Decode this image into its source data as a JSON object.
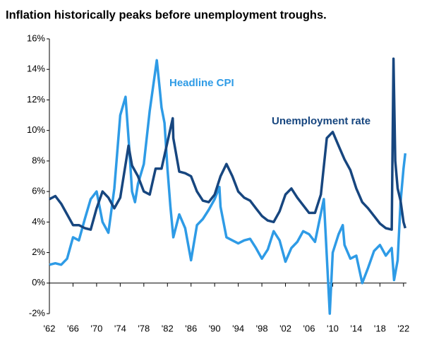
{
  "chart_data": {
    "type": "line",
    "title": "Inflation historically peaks before unemployment troughs.",
    "xlim": [
      1962,
      2022.5
    ],
    "xticks": [
      {
        "value": 1962,
        "label": "'62"
      },
      {
        "value": 1966,
        "label": "'66"
      },
      {
        "value": 1970,
        "label": "'70"
      },
      {
        "value": 1974,
        "label": "'74"
      },
      {
        "value": 1978,
        "label": "'78"
      },
      {
        "value": 1982,
        "label": "'82"
      },
      {
        "value": 1986,
        "label": "'86"
      },
      {
        "value": 1990,
        "label": "'90"
      },
      {
        "value": 1994,
        "label": "'94"
      },
      {
        "value": 1998,
        "label": "'98"
      },
      {
        "value": 2002,
        "label": "'02"
      },
      {
        "value": 2006,
        "label": "'06"
      },
      {
        "value": 2010,
        "label": "'10"
      },
      {
        "value": 2014,
        "label": "'14"
      },
      {
        "value": 2018,
        "label": "'18"
      },
      {
        "value": 2022,
        "label": "'22"
      }
    ],
    "ylim": [
      -2,
      16
    ],
    "yticks": [
      {
        "value": -2,
        "label": "-2%"
      },
      {
        "value": 0,
        "label": "0%"
      },
      {
        "value": 2,
        "label": "2%"
      },
      {
        "value": 4,
        "label": "4%"
      },
      {
        "value": 6,
        "label": "6%"
      },
      {
        "value": 8,
        "label": "8%"
      },
      {
        "value": 10,
        "label": "10%"
      },
      {
        "value": 12,
        "label": "12%"
      },
      {
        "value": 14,
        "label": "14%"
      },
      {
        "value": 16,
        "label": "16%"
      }
    ],
    "series": [
      {
        "name": "Headline CPI",
        "color": "#2e9be6",
        "x": [
          1962,
          1963,
          1964,
          1965,
          1966,
          1967,
          1968,
          1969,
          1970,
          1971,
          1972,
          1973,
          1974,
          1974.9,
          1975.5,
          1976,
          1976.5,
          1977,
          1978,
          1979,
          1980.2,
          1980.7,
          1981,
          1981.5,
          1982,
          1982.5,
          1983,
          1984,
          1985,
          1986,
          1987,
          1988,
          1989,
          1990,
          1990.8,
          1991,
          1992,
          1993,
          1994,
          1995,
          1996,
          1997,
          1998,
          1999,
          2000,
          2001,
          2002,
          2003,
          2004,
          2005,
          2006,
          2007,
          2008.5,
          2009.5,
          2010,
          2011,
          2011.7,
          2012,
          2013,
          2014,
          2015,
          2016,
          2017,
          2018,
          2019,
          2020,
          2020.4,
          2021,
          2021.5,
          2022,
          2022.3
        ],
        "values": [
          1.2,
          1.3,
          1.2,
          1.6,
          3.0,
          2.8,
          4.2,
          5.5,
          6.0,
          4.0,
          3.3,
          6.2,
          11.0,
          12.2,
          9.0,
          6.0,
          5.3,
          6.5,
          7.8,
          11.3,
          14.6,
          12.7,
          11.5,
          10.5,
          7.5,
          5.0,
          3.0,
          4.5,
          3.6,
          1.5,
          3.8,
          4.2,
          4.8,
          5.5,
          6.3,
          5.0,
          3.0,
          2.8,
          2.6,
          2.8,
          2.9,
          2.3,
          1.6,
          2.2,
          3.4,
          2.8,
          1.4,
          2.3,
          2.7,
          3.4,
          3.2,
          2.7,
          5.5,
          -2.0,
          2.0,
          3.2,
          3.8,
          2.5,
          1.6,
          1.8,
          0.0,
          1.0,
          2.1,
          2.5,
          1.8,
          2.3,
          0.2,
          1.5,
          5.3,
          7.5,
          8.5
        ]
      },
      {
        "name": "Unemployment rate",
        "color": "#17467f",
        "x": [
          1962,
          1963,
          1964,
          1965,
          1966,
          1967,
          1968,
          1969,
          1970,
          1971,
          1972,
          1973,
          1974,
          1975.4,
          1976,
          1977,
          1978,
          1979,
          1980,
          1981,
          1982.9,
          1983,
          1984,
          1985,
          1986,
          1987,
          1988,
          1989,
          1990,
          1991,
          1992,
          1993,
          1994,
          1995,
          1996,
          1997,
          1998,
          1999,
          2000,
          2001,
          2002,
          2003,
          2004,
          2005,
          2006,
          2007,
          2008,
          2009,
          2010,
          2011,
          2012,
          2013,
          2014,
          2015,
          2016,
          2017,
          2018,
          2019,
          2020,
          2020.3,
          2020.6,
          2021,
          2021.5,
          2022,
          2022.3
        ],
        "values": [
          5.5,
          5.7,
          5.2,
          4.5,
          3.8,
          3.8,
          3.6,
          3.5,
          4.9,
          6.0,
          5.6,
          4.9,
          5.6,
          9.0,
          7.7,
          7.0,
          6.0,
          5.8,
          7.5,
          7.5,
          10.8,
          9.5,
          7.3,
          7.2,
          7.0,
          6.0,
          5.4,
          5.3,
          5.8,
          7.0,
          7.8,
          7.0,
          6.0,
          5.6,
          5.4,
          4.9,
          4.4,
          4.1,
          4.0,
          4.7,
          5.8,
          6.2,
          5.6,
          5.1,
          4.6,
          4.6,
          5.8,
          9.5,
          9.9,
          9.0,
          8.1,
          7.4,
          6.2,
          5.3,
          4.9,
          4.4,
          3.9,
          3.6,
          3.5,
          14.7,
          8.0,
          6.2,
          5.4,
          4.0,
          3.6
        ]
      }
    ]
  }
}
